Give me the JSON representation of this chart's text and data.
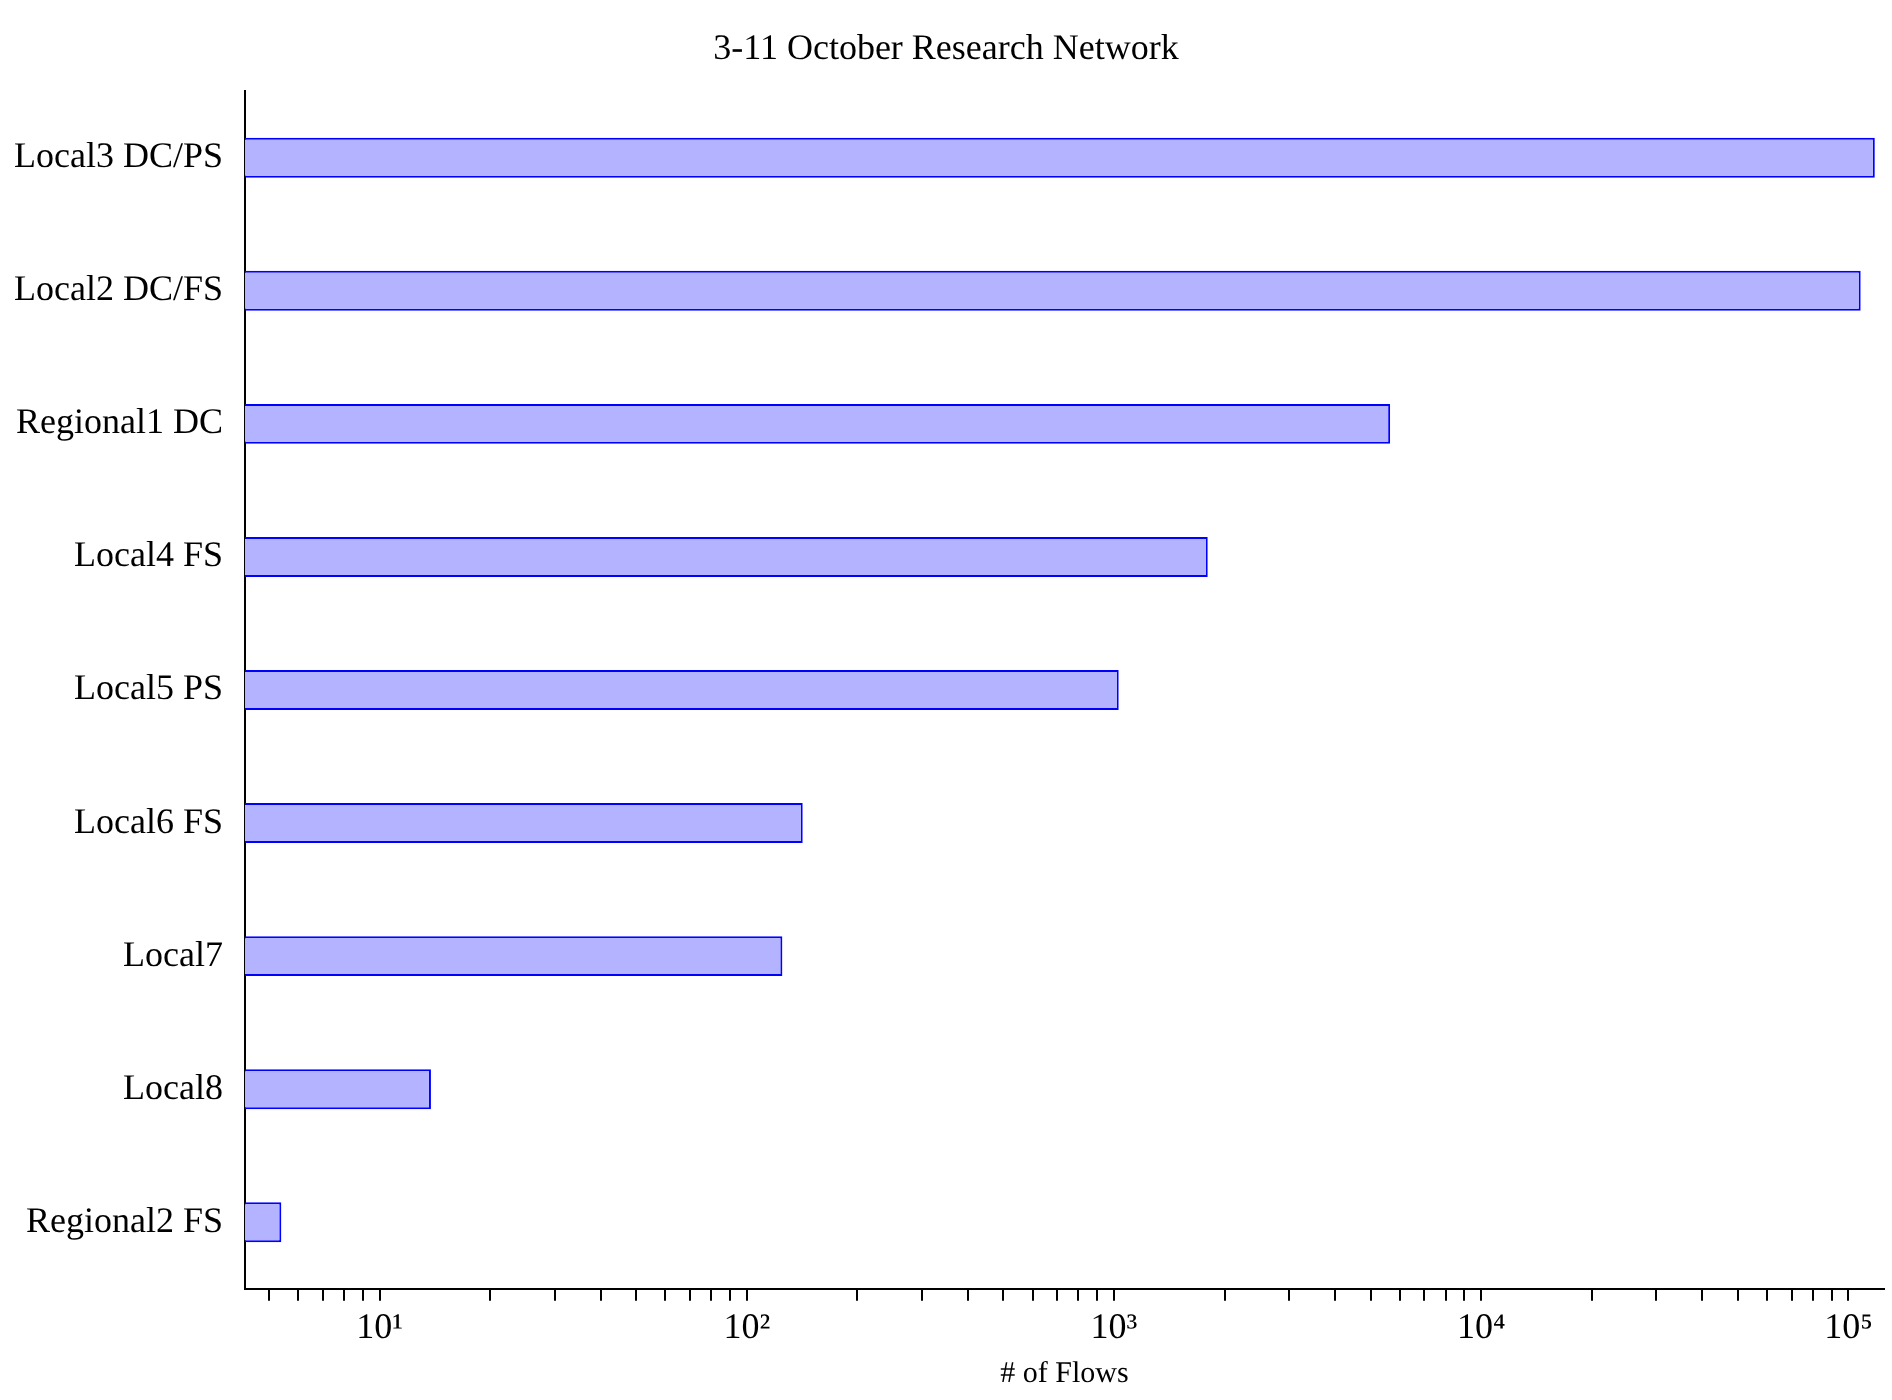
{
  "chart_data": {
    "type": "bar",
    "orientation": "horizontal",
    "title": "3-11 October Research Network",
    "xlabel": "# of Flows",
    "log": "x",
    "categories": [
      "Local3 DC/PS",
      "Local2 DC/FS",
      "Regional1 DC",
      "Local4 FS",
      "Local5 PS",
      "Local6 FS",
      "Local7",
      "Local8",
      "Regional2 FS"
    ],
    "series": [
      {
        "color": "#b3b3ff",
        "values": [
          118000,
          108000,
          5650,
          1800,
          1030,
          142,
          125,
          13.8,
          5.4
        ]
      }
    ],
    "xlim": [
      4.3,
      125000
    ],
    "xticks": [
      {
        "value": 5,
        "label": null
      },
      {
        "value": 6,
        "label": null
      },
      {
        "value": 7,
        "label": null
      },
      {
        "value": 8,
        "label": null
      },
      {
        "value": 9,
        "label": null
      },
      {
        "value": 10,
        "label": "10¹"
      },
      {
        "value": 20,
        "label": null
      },
      {
        "value": 30,
        "label": null
      },
      {
        "value": 40,
        "label": null
      },
      {
        "value": 50,
        "label": null
      },
      {
        "value": 60,
        "label": null
      },
      {
        "value": 70,
        "label": null
      },
      {
        "value": 80,
        "label": null
      },
      {
        "value": 90,
        "label": null
      },
      {
        "value": 100,
        "label": "10²"
      },
      {
        "value": 200,
        "label": null
      },
      {
        "value": 300,
        "label": null
      },
      {
        "value": 400,
        "label": null
      },
      {
        "value": 500,
        "label": null
      },
      {
        "value": 600,
        "label": null
      },
      {
        "value": 700,
        "label": null
      },
      {
        "value": 800,
        "label": null
      },
      {
        "value": 900,
        "label": null
      },
      {
        "value": 1000,
        "label": "10³"
      },
      {
        "value": 2000,
        "label": null
      },
      {
        "value": 3000,
        "label": null
      },
      {
        "value": 4000,
        "label": null
      },
      {
        "value": 5000,
        "label": null
      },
      {
        "value": 6000,
        "label": null
      },
      {
        "value": 7000,
        "label": null
      },
      {
        "value": 8000,
        "label": null
      },
      {
        "value": 9000,
        "label": null
      },
      {
        "value": 10000,
        "label": "10⁴"
      },
      {
        "value": 20000,
        "label": null
      },
      {
        "value": 30000,
        "label": null
      },
      {
        "value": 40000,
        "label": null
      },
      {
        "value": 50000,
        "label": null
      },
      {
        "value": 60000,
        "label": null
      },
      {
        "value": 70000,
        "label": null
      },
      {
        "value": 80000,
        "label": null
      },
      {
        "value": 90000,
        "label": null
      },
      {
        "value": 100000,
        "label": "10⁵"
      }
    ],
    "grid": false,
    "legend": false
  }
}
